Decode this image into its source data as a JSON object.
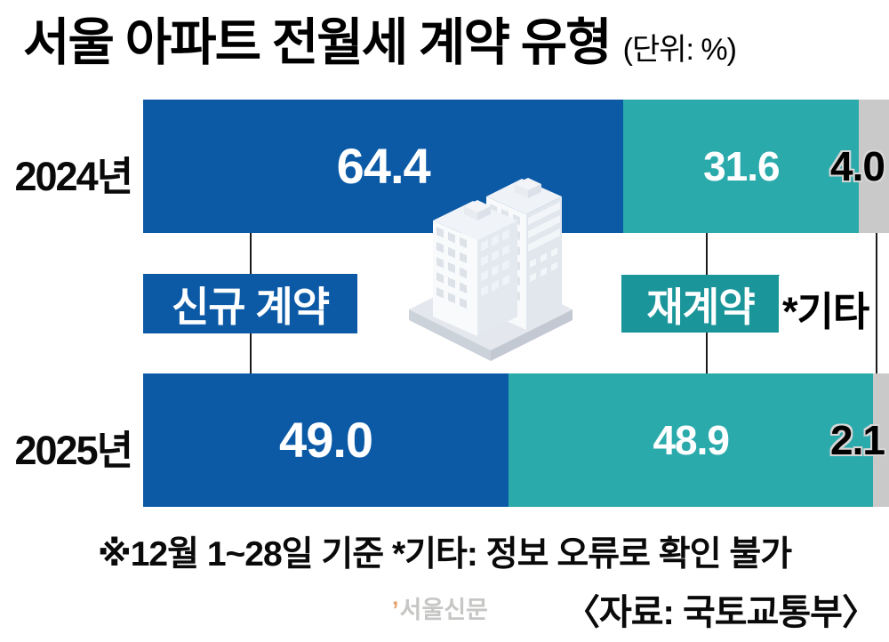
{
  "title": {
    "text": "서울 아파트 전월세 계약 유형",
    "unit": "(단위: %)"
  },
  "chart_data": {
    "type": "bar",
    "orientation": "horizontal",
    "stacked": true,
    "unit": "%",
    "xlim": [
      0,
      100
    ],
    "grid": false,
    "legend_position": "between-bars",
    "categories": [
      "2024년",
      "2025년"
    ],
    "series": [
      {
        "name": "신규 계약",
        "color": "#0c5aa6",
        "values": [
          64.4,
          49.0
        ],
        "display": [
          "64.4",
          "49.0"
        ]
      },
      {
        "name": "재계약",
        "color": "#2baaac",
        "values": [
          31.6,
          48.9
        ],
        "display": [
          "31.6",
          "48.9"
        ]
      },
      {
        "name": "*기타",
        "color": "#c9c9c9",
        "values": [
          4.0,
          2.1
        ],
        "display": [
          "4.0",
          "2.1"
        ]
      }
    ]
  },
  "colors": {
    "new_box": "#0c5aa6",
    "renewal_box": "#1a9599",
    "connector_line": "#1a1a1a"
  },
  "footnote": "※12월 1~28일 기준  *기타: 정보 오류로 확인 불가",
  "source": "〈자료: 국토교통부〉",
  "watermark": {
    "mark": "’",
    "text": "서울신문"
  }
}
